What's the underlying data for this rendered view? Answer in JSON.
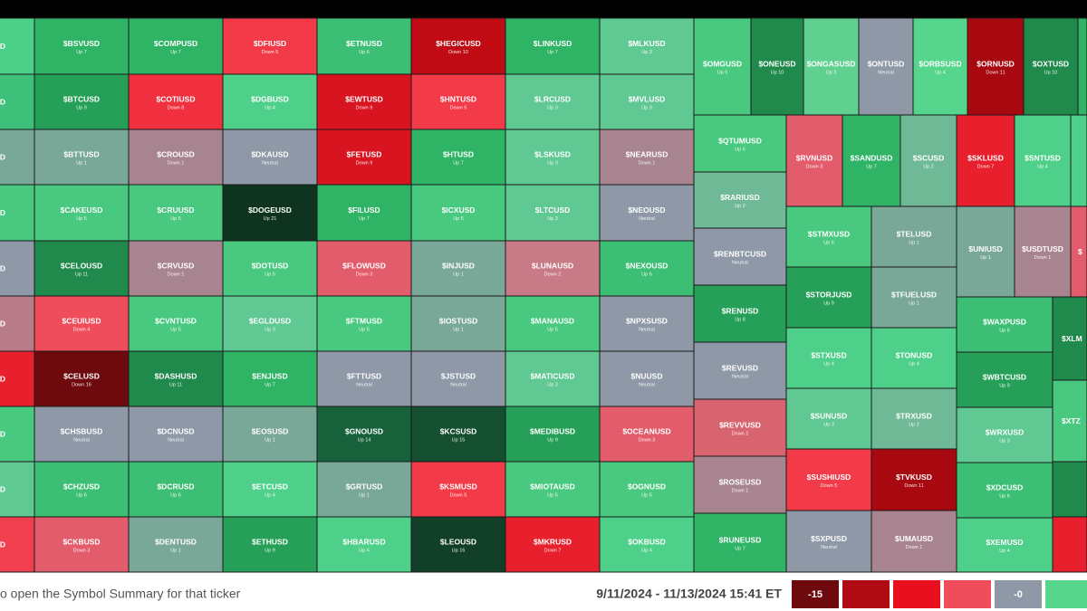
{
  "tiles": [
    {
      "ticker": "D",
      "color": "#4ccf86"
    },
    {
      "ticker": "D",
      "color": "#3ec07a"
    },
    {
      "ticker": "D",
      "color": "#7aa898"
    },
    {
      "ticker": "D",
      "color": "#48c97f"
    },
    {
      "ticker": "D",
      "color": "#8e98a6"
    },
    {
      "ticker": "D",
      "color": "#b87c88"
    },
    {
      "ticker": "D",
      "color": "#e8202e"
    },
    {
      "ticker": "D",
      "color": "#48c97f"
    },
    {
      "ticker": "D",
      "color": "#5fc893"
    },
    {
      "ticker": "D",
      "color": "#f04050"
    },
    {
      "ticker": "$BSVUSD",
      "sub": "Up 7",
      "color": "#2fb466"
    },
    {
      "ticker": "$BTCUSD",
      "sub": "Up 9",
      "color": "#26a058"
    },
    {
      "ticker": "$BTTUSD",
      "sub": "Up 1",
      "color": "#7aa898"
    },
    {
      "ticker": "$CAKEUSD",
      "sub": "Up 5",
      "color": "#48c97f"
    },
    {
      "ticker": "$CELOUSD",
      "sub": "Up 11",
      "color": "#1f8a4c"
    },
    {
      "ticker": "$CEUIUSD",
      "sub": "Down 4",
      "color": "#f04d5c"
    },
    {
      "ticker": "$CELUSD",
      "sub": "Down 16",
      "color": "#6e0a0e"
    },
    {
      "ticker": "$CHSBUSD",
      "sub": "Neutral",
      "color": "#8e98a6"
    },
    {
      "ticker": "$CHZUSD",
      "sub": "Up 6",
      "color": "#3cbf74"
    },
    {
      "ticker": "$CKBUSD",
      "sub": "Down 3",
      "color": "#e35c6c"
    },
    {
      "ticker": "$COMPUSD",
      "sub": "Up 7",
      "color": "#2fb466"
    },
    {
      "ticker": "$COTIUSD",
      "sub": "Down 8",
      "color": "#f0303e"
    },
    {
      "ticker": "$CROUSD",
      "sub": "Down 1",
      "color": "#a88490"
    },
    {
      "ticker": "$CRUUSD",
      "sub": "Up 5",
      "color": "#48c97f"
    },
    {
      "ticker": "$CRVUSD",
      "sub": "Down 1",
      "color": "#a88490"
    },
    {
      "ticker": "$CVNTUSD",
      "sub": "Up 5",
      "color": "#48c97f"
    },
    {
      "ticker": "$DASHUSD",
      "sub": "Up 11",
      "color": "#1f8a4c"
    },
    {
      "ticker": "$DCNUSD",
      "sub": "Neutral",
      "color": "#8e98a6"
    },
    {
      "ticker": "$DCRUSD",
      "sub": "Up 6",
      "color": "#3cbf74"
    },
    {
      "ticker": "$DENTUSD",
      "sub": "Up 1",
      "color": "#7aa898"
    },
    {
      "ticker": "$DFIUSD",
      "sub": "Down 5",
      "color": "#f23a48"
    },
    {
      "ticker": "$DGBUSD",
      "sub": "Up 4",
      "color": "#4fd08a"
    },
    {
      "ticker": "$DKAUSD",
      "sub": "Neutral",
      "color": "#8e98a6"
    },
    {
      "ticker": "$DOGEUSD",
      "sub": "Up 21",
      "color": "#0e3420"
    },
    {
      "ticker": "$DOTUSD",
      "sub": "Up 5",
      "color": "#48c97f"
    },
    {
      "ticker": "$EGLDUSD",
      "sub": "Up 3",
      "color": "#5fc893"
    },
    {
      "ticker": "$ENJUSD",
      "sub": "Up 7",
      "color": "#2fb466"
    },
    {
      "ticker": "$EOSUSD",
      "sub": "Up 1",
      "color": "#7aa898"
    },
    {
      "ticker": "$ETCUSD",
      "sub": "Up 4",
      "color": "#4fd08a"
    },
    {
      "ticker": "$ETHUSD",
      "sub": "Up 9",
      "color": "#26a058"
    },
    {
      "ticker": "$ETNUSD",
      "sub": "Up 6",
      "color": "#3cbf74"
    },
    {
      "ticker": "$EWTUSD",
      "sub": "Down 9",
      "color": "#d81420"
    },
    {
      "ticker": "$FETUSD",
      "sub": "Down 9",
      "color": "#d81420"
    },
    {
      "ticker": "$FILUSD",
      "sub": "Up 7",
      "color": "#2fb466"
    },
    {
      "ticker": "$FLOWUSD",
      "sub": "Down 3",
      "color": "#e35c6c"
    },
    {
      "ticker": "$FTMUSD",
      "sub": "Up 5",
      "color": "#48c97f"
    },
    {
      "ticker": "$FTTUSD",
      "sub": "Neutral",
      "color": "#8e98a6"
    },
    {
      "ticker": "$GNOUSD",
      "sub": "Up 14",
      "color": "#17623a"
    },
    {
      "ticker": "$GRTUSD",
      "sub": "Up 1",
      "color": "#7aa898"
    },
    {
      "ticker": "$HBARUSD",
      "sub": "Up 4",
      "color": "#4fd08a"
    },
    {
      "ticker": "$HEGICUSD",
      "sub": "Down 10",
      "color": "#c00a14"
    },
    {
      "ticker": "$HNTUSD",
      "sub": "Down 5",
      "color": "#f23a48"
    },
    {
      "ticker": "$HTUSD",
      "sub": "Up 7",
      "color": "#2fb466"
    },
    {
      "ticker": "$ICXUSD",
      "sub": "Up 5",
      "color": "#48c97f"
    },
    {
      "ticker": "$INJUSD",
      "sub": "Up 1",
      "color": "#7aa898"
    },
    {
      "ticker": "$IOSTUSD",
      "sub": "Up 1",
      "color": "#7aa898"
    },
    {
      "ticker": "$JSTUSD",
      "sub": "Neutral",
      "color": "#8e98a6"
    },
    {
      "ticker": "$KCSUSD",
      "sub": "Up 15",
      "color": "#14502f"
    },
    {
      "ticker": "$KSMUSD",
      "sub": "Down 5",
      "color": "#f23a48"
    },
    {
      "ticker": "$LEOUSD",
      "sub": "Up 16",
      "color": "#123f27"
    },
    {
      "ticker": "$LINKUSD",
      "sub": "Up 7",
      "color": "#2fb466"
    },
    {
      "ticker": "$LRCUSD",
      "sub": "Up 3",
      "color": "#5fc893"
    },
    {
      "ticker": "$LSKUSD",
      "sub": "Up 3",
      "color": "#5fc893"
    },
    {
      "ticker": "$LTCUSD",
      "sub": "Up 3",
      "color": "#5fc893"
    },
    {
      "ticker": "$LUNAUSD",
      "sub": "Down 2",
      "color": "#c87a86"
    },
    {
      "ticker": "$MANAUSD",
      "sub": "Up 5",
      "color": "#48c97f"
    },
    {
      "ticker": "$MATICUSD",
      "sub": "Up 3",
      "color": "#5fc893"
    },
    {
      "ticker": "$MEDIBUSD",
      "sub": "Up 9",
      "color": "#26a058"
    },
    {
      "ticker": "$MIOTAUSD",
      "sub": "Up 5",
      "color": "#48c97f"
    },
    {
      "ticker": "$MKRUSD",
      "sub": "Down 7",
      "color": "#e8202e"
    },
    {
      "ticker": "$MLKUSD",
      "sub": "Up 3",
      "color": "#5fc893"
    },
    {
      "ticker": "$MVLUSD",
      "sub": "Up 3",
      "color": "#5fc893"
    },
    {
      "ticker": "$NEARUSD",
      "sub": "Down 1",
      "color": "#a88490"
    },
    {
      "ticker": "$NEOUSD",
      "sub": "Neutral",
      "color": "#8e98a6"
    },
    {
      "ticker": "$NEXOUSD",
      "sub": "Up 6",
      "color": "#3cbf74"
    },
    {
      "ticker": "$NPXSUSD",
      "sub": "Neutral",
      "color": "#8e98a6"
    },
    {
      "ticker": "$NUUSD",
      "sub": "Neutral",
      "color": "#8e98a6"
    },
    {
      "ticker": "$OCEANUSD",
      "sub": "Down 3",
      "color": "#e35c6c"
    },
    {
      "ticker": "$OGNUSD",
      "sub": "Up 5",
      "color": "#48c97f"
    },
    {
      "ticker": "$OKBUSD",
      "sub": "Up 4",
      "color": "#4fd08a"
    },
    {
      "ticker": "$OMGUSD",
      "sub": "Up 5",
      "color": "#48c97f"
    },
    {
      "ticker": "$ONEUSD",
      "sub": "Up 10",
      "color": "#1f8a4c"
    },
    {
      "ticker": "$ONGASUSD",
      "sub": "Up 3",
      "color": "#5fd08f"
    },
    {
      "ticker": "$ONTUSD",
      "sub": "Neutral",
      "color": "#8e98a6"
    },
    {
      "ticker": "$ORBSUSD",
      "sub": "Up 4",
      "color": "#55d68c"
    },
    {
      "ticker": "$ORNUSD",
      "sub": "Down 11",
      "color": "#a8080f"
    },
    {
      "ticker": "$OXTUSD",
      "sub": "Up 10",
      "color": "#1f8a4c"
    },
    {
      "color": "#2fb466"
    },
    {
      "ticker": "$QTUMUSD",
      "sub": "Up 5",
      "color": "#48c97f"
    },
    {
      "ticker": "$RARIUSD",
      "sub": "Up 2",
      "color": "#6fb996"
    },
    {
      "ticker": "$RENBTCUSD",
      "sub": "Neutral",
      "color": "#8e98a6"
    },
    {
      "ticker": "$RENUSD",
      "sub": "Up 8",
      "color": "#26a058"
    },
    {
      "ticker": "$REVUSD",
      "sub": "Neutral",
      "color": "#8e98a6"
    },
    {
      "ticker": "$REVVUSD",
      "sub": "Down 2",
      "color": "#d86470"
    },
    {
      "ticker": "$ROSEUSD",
      "sub": "Down 1",
      "color": "#a88490"
    },
    {
      "ticker": "$RUNEUSD",
      "sub": "Up 7",
      "color": "#2fb466"
    },
    {
      "ticker": "$RVNUSD",
      "sub": "Down 3",
      "color": "#e35c6c"
    },
    {
      "ticker": "$SANDUSD",
      "sub": "Up 7",
      "color": "#2fb466"
    },
    {
      "ticker": "$SCUSD",
      "sub": "Up 2",
      "color": "#6fb996"
    },
    {
      "ticker": "$SKLUSD",
      "sub": "Down 7",
      "color": "#e8202e"
    },
    {
      "ticker": "$SNTUSD",
      "sub": "Up 4",
      "color": "#4fd08a"
    },
    {
      "color": "#4fd08a"
    },
    {
      "ticker": "$STMXUSD",
      "sub": "Up 5",
      "color": "#48c97f"
    },
    {
      "ticker": "$STORJUSD",
      "sub": "Up 9",
      "color": "#26a058"
    },
    {
      "ticker": "$STXUSD",
      "sub": "Up 4",
      "color": "#4fd08a"
    },
    {
      "ticker": "$SUNUSD",
      "sub": "Up 3",
      "color": "#5fc893"
    },
    {
      "ticker": "$SUSHIUSD",
      "sub": "Down 5",
      "color": "#f23a48"
    },
    {
      "ticker": "$SXPUSD",
      "sub": "Neutral",
      "color": "#8e98a6"
    },
    {
      "ticker": "$TELUSD",
      "sub": "Up 1",
      "color": "#7aa898"
    },
    {
      "ticker": "$TFUELUSD",
      "sub": "Up 1",
      "color": "#7aa898"
    },
    {
      "ticker": "$TONUSD",
      "sub": "Up 4",
      "color": "#4fd08a"
    },
    {
      "ticker": "$TRXUSD",
      "sub": "Up 2",
      "color": "#6fb996"
    },
    {
      "ticker": "$TVKUSD",
      "sub": "Down 11",
      "color": "#a8080f"
    },
    {
      "ticker": "$UMAUSD",
      "sub": "Down 1",
      "color": "#a88490"
    },
    {
      "ticker": "$UNIUSD",
      "sub": "Up 1",
      "color": "#7aa898"
    },
    {
      "ticker": "$USDTUSD",
      "sub": "Down 1",
      "color": "#a88490"
    },
    {
      "ticker": "$",
      "color": "#e35c6c"
    },
    {
      "ticker": "$WAXPUSD",
      "sub": "Up 6",
      "color": "#3cbf74"
    },
    {
      "ticker": "$WBTCUSD",
      "sub": "Up 9",
      "color": "#26a058"
    },
    {
      "ticker": "$WRXUSD",
      "sub": "Up 3",
      "color": "#5fc893"
    },
    {
      "ticker": "$XDCUSD",
      "sub": "Up 6",
      "color": "#3cbf74"
    },
    {
      "ticker": "$XEMUSD",
      "sub": "Up 4",
      "color": "#4fd08a"
    },
    {
      "ticker": "$XLM",
      "color": "#1f8a4c"
    },
    {
      "ticker": "$XTZ",
      "color": "#48c97f"
    },
    {
      "color": "#1f8a4c"
    },
    {
      "color": "#e8202e"
    }
  ],
  "footer": {
    "hint": "o open the Symbol Summary for that ticker",
    "range": "9/11/2024 - 11/13/2024 15:41 ET",
    "legend": [
      {
        "label": "-15",
        "color": "#6e0a0e"
      },
      {
        "color": "#b00a14"
      },
      {
        "color": "#e8101e"
      },
      {
        "color": "#f04d5c"
      },
      {
        "label": "-0",
        "color": "#8e98a6"
      },
      {
        "color": "#55d68c"
      }
    ]
  }
}
